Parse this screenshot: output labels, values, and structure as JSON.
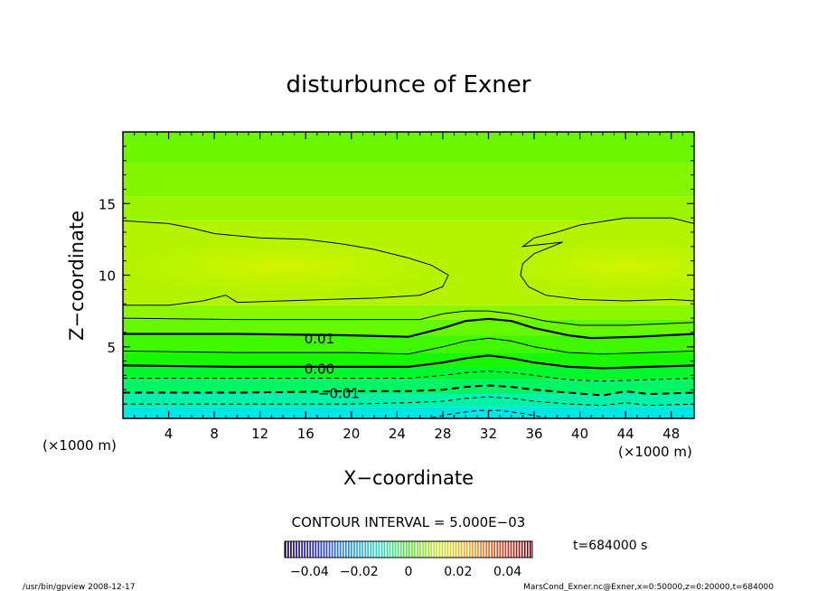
{
  "chart_data": {
    "type": "heatmap",
    "title": "disturbunce of Exner",
    "xlabel": "X−coordinate",
    "ylabel": "Z−coordinate",
    "x_unit_left": "(×1000 m)",
    "x_unit_right": "(×1000 m)",
    "xlim": [
      0,
      50
    ],
    "ylim": [
      0,
      20
    ],
    "x_ticks": [
      4,
      8,
      12,
      16,
      20,
      24,
      28,
      32,
      36,
      40,
      44,
      48
    ],
    "y_ticks": [
      5,
      10,
      15
    ],
    "contour_interval_text": "CONTOUR INTERVAL = 5.000E−03",
    "contour_labels": [
      {
        "text": "0.01",
        "x": 17.2,
        "y": 5.6
      },
      {
        "text": "0.00",
        "x": 17.2,
        "y": 3.5
      },
      {
        "text": "−0.01",
        "x": 18.9,
        "y": 1.8
      }
    ],
    "contours": [
      {
        "level": 0.02,
        "style": "thin",
        "points": [
          [
            0,
            13.8
          ],
          [
            4,
            13.6
          ],
          [
            6,
            13.3
          ],
          [
            8,
            12.9
          ],
          [
            12,
            12.6
          ],
          [
            16,
            12.5
          ],
          [
            19,
            12.2
          ],
          [
            22,
            11.8
          ],
          [
            25,
            11.2
          ],
          [
            27,
            10.7
          ],
          [
            28.5,
            10.0
          ],
          [
            28,
            9.2
          ],
          [
            26,
            8.6
          ],
          [
            22,
            8.4
          ],
          [
            18,
            8.3
          ],
          [
            14,
            8.2
          ],
          [
            10,
            8.1
          ],
          [
            9,
            8.6
          ],
          [
            7,
            8.2
          ],
          [
            4,
            7.9
          ],
          [
            0,
            7.9
          ]
        ]
      },
      {
        "level": 0.02,
        "style": "thin",
        "points": [
          [
            50,
            13.6
          ],
          [
            48,
            14.0
          ],
          [
            44,
            14.0
          ],
          [
            40,
            13.5
          ],
          [
            38,
            13.0
          ],
          [
            36,
            12.6
          ],
          [
            35,
            12.0
          ],
          [
            38.5,
            12.3
          ],
          [
            36,
            11.5
          ],
          [
            35,
            10.8
          ],
          [
            34.8,
            10.0
          ],
          [
            35.5,
            9.2
          ],
          [
            37,
            8.6
          ],
          [
            40,
            8.3
          ],
          [
            44,
            8.2
          ],
          [
            48,
            8.3
          ],
          [
            50,
            8.2
          ]
        ]
      },
      {
        "level": 0.015,
        "style": "thin",
        "points": [
          [
            0,
            7.0
          ],
          [
            10,
            6.9
          ],
          [
            20,
            6.9
          ],
          [
            26,
            6.9
          ],
          [
            28,
            7.3
          ],
          [
            30,
            7.5
          ],
          [
            32,
            7.5
          ],
          [
            34,
            7.3
          ],
          [
            37,
            6.8
          ],
          [
            40,
            6.5
          ],
          [
            44,
            6.5
          ],
          [
            50,
            6.7
          ]
        ]
      },
      {
        "level": 0.01,
        "style": "thick",
        "points": [
          [
            0,
            5.9
          ],
          [
            10,
            5.9
          ],
          [
            20,
            5.8
          ],
          [
            25,
            5.7
          ],
          [
            28,
            6.3
          ],
          [
            30,
            6.8
          ],
          [
            32,
            6.95
          ],
          [
            34,
            6.8
          ],
          [
            36,
            6.3
          ],
          [
            39,
            5.8
          ],
          [
            41,
            5.6
          ],
          [
            45,
            5.7
          ],
          [
            50,
            5.9
          ]
        ]
      },
      {
        "level": 0.005,
        "style": "thin",
        "points": [
          [
            0,
            4.7
          ],
          [
            10,
            4.6
          ],
          [
            20,
            4.6
          ],
          [
            25,
            4.5
          ],
          [
            28,
            5.0
          ],
          [
            30,
            5.4
          ],
          [
            32,
            5.6
          ],
          [
            34,
            5.4
          ],
          [
            36,
            5.0
          ],
          [
            39,
            4.6
          ],
          [
            42,
            4.5
          ],
          [
            46,
            4.6
          ],
          [
            50,
            4.7
          ]
        ]
      },
      {
        "level": 0.0,
        "style": "thick",
        "points": [
          [
            0,
            3.7
          ],
          [
            10,
            3.6
          ],
          [
            20,
            3.6
          ],
          [
            25,
            3.6
          ],
          [
            28,
            3.9
          ],
          [
            30,
            4.2
          ],
          [
            32,
            4.4
          ],
          [
            34,
            4.2
          ],
          [
            36,
            3.9
          ],
          [
            39,
            3.6
          ],
          [
            42,
            3.5
          ],
          [
            46,
            3.6
          ],
          [
            50,
            3.7
          ]
        ]
      },
      {
        "level": -0.005,
        "style": "dashed",
        "points": [
          [
            0,
            2.8
          ],
          [
            10,
            2.8
          ],
          [
            20,
            2.8
          ],
          [
            25,
            2.8
          ],
          [
            28,
            3.0
          ],
          [
            30,
            3.2
          ],
          [
            32,
            3.3
          ],
          [
            34,
            3.2
          ],
          [
            36,
            3.0
          ],
          [
            39,
            2.7
          ],
          [
            42,
            2.6
          ],
          [
            46,
            2.7
          ],
          [
            50,
            2.8
          ]
        ]
      },
      {
        "level": -0.01,
        "style": "dashed-thick",
        "points": [
          [
            0,
            1.8
          ],
          [
            10,
            1.8
          ],
          [
            20,
            1.9
          ],
          [
            25,
            1.9
          ],
          [
            28,
            2.0
          ],
          [
            30,
            2.2
          ],
          [
            32,
            2.3
          ],
          [
            34,
            2.2
          ],
          [
            36,
            2.0
          ],
          [
            39,
            1.8
          ],
          [
            42,
            1.6
          ],
          [
            44,
            1.9
          ],
          [
            46,
            1.7
          ],
          [
            50,
            1.8
          ]
        ]
      },
      {
        "level": -0.015,
        "style": "dashed",
        "points": [
          [
            0,
            1.0
          ],
          [
            10,
            1.0
          ],
          [
            20,
            1.0
          ],
          [
            25,
            1.1
          ],
          [
            28,
            1.2
          ],
          [
            30,
            1.4
          ],
          [
            32,
            1.5
          ],
          [
            34,
            1.4
          ],
          [
            36,
            1.2
          ],
          [
            39,
            1.0
          ],
          [
            42,
            0.9
          ],
          [
            44,
            1.1
          ],
          [
            46,
            0.9
          ],
          [
            50,
            1.0
          ]
        ]
      },
      {
        "level": -0.02,
        "style": "dashed",
        "points": [
          [
            27,
            0.05
          ],
          [
            29,
            0.35
          ],
          [
            31,
            0.55
          ],
          [
            33,
            0.55
          ],
          [
            35,
            0.35
          ],
          [
            37,
            0.05
          ]
        ]
      }
    ],
    "color_bands": [
      {
        "z0": 0.0,
        "z1": 0.8,
        "color": "#00e6e6"
      },
      {
        "z0": 0.8,
        "z1": 1.7,
        "color": "#00f2a8"
      },
      {
        "z0": 1.7,
        "z1": 2.7,
        "color": "#00f566"
      },
      {
        "z0": 2.7,
        "z1": 3.6,
        "color": "#00f72e"
      },
      {
        "z0": 3.6,
        "z1": 4.6,
        "color": "#18f800"
      },
      {
        "z0": 4.6,
        "z1": 5.8,
        "color": "#40f800"
      },
      {
        "z0": 5.8,
        "z1": 6.9,
        "color": "#66f800"
      },
      {
        "z0": 6.9,
        "z1": 7.9,
        "color": "#8cf800"
      },
      {
        "z0": 7.9,
        "z1": 13.8,
        "color": "#b4f400"
      },
      {
        "z0": 13.8,
        "z1": 15.5,
        "color": "#9cf500"
      },
      {
        "z0": 15.5,
        "z1": 17.8,
        "color": "#84f600"
      },
      {
        "z0": 17.8,
        "z1": 20.0,
        "color": "#6cf600"
      }
    ],
    "core_color": "#d2f500",
    "colorbar": {
      "ticks": [
        "−0.04",
        "−0.02",
        "0",
        "0.02",
        "0.04"
      ],
      "range": [
        -0.05,
        0.05
      ]
    }
  },
  "annotations": {
    "time": "t=684000 s",
    "footer_left": "/usr/bin/gpview  2008-12-17",
    "footer_right": "MarsCond_Exner.nc@Exner,x=0:50000,z=0:20000,t=684000"
  }
}
